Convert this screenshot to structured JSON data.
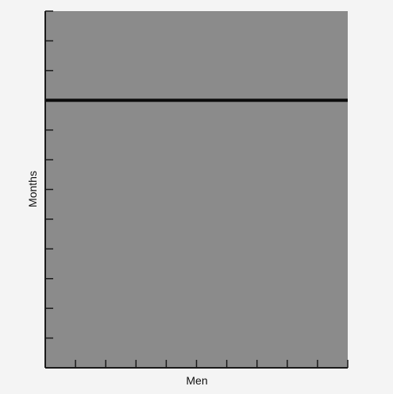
{
  "chart_data": {
    "type": "line",
    "title": "",
    "xlabel": "Men",
    "ylabel": "Months",
    "x": [
      0,
      10
    ],
    "series": [
      {
        "values": [
          9,
          9
        ]
      }
    ],
    "xlim": [
      0,
      10
    ],
    "ylim": [
      0,
      12
    ],
    "x_ticks": [
      0,
      1,
      2,
      3,
      4,
      5,
      6,
      7,
      8,
      9,
      10
    ],
    "y_ticks": [
      0,
      1,
      2,
      3,
      4,
      5,
      6,
      7,
      8,
      9,
      10,
      11,
      12
    ],
    "show_tick_labels": false,
    "grid": false,
    "legend": "none",
    "colors": {
      "plot_background": "#8b8b8b",
      "line": "#0c0c0c",
      "axis": "#1a1a1a"
    }
  }
}
